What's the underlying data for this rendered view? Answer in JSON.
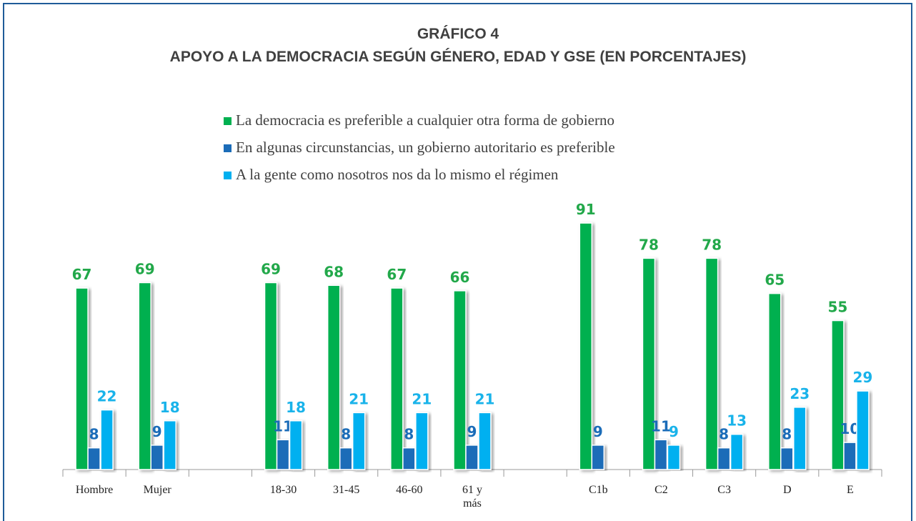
{
  "chart_data": {
    "type": "bar",
    "title": "GRÁFICO 4",
    "subtitle": "APOYO A LA DEMOCRACIA SEGÚN GÉNERO, EDAD Y GSE (EN PORCENTAJES)",
    "categories": [
      "Hombre",
      "Mujer",
      null,
      "18-30",
      "31-45",
      "46-60",
      "61 y más",
      null,
      "C1b",
      "C2",
      "C3",
      "D",
      "E"
    ],
    "series": [
      {
        "name": "La democracia es preferible a cualquier otra forma de gobierno",
        "color": "#00b050",
        "label_color": "#22a84a",
        "values": [
          67,
          69,
          null,
          69,
          68,
          67,
          66,
          null,
          91,
          78,
          78,
          65,
          55
        ]
      },
      {
        "name": "En algunas circunstancias, un gobierno autoritario es preferible",
        "color": "#1b6cb8",
        "label_color": "#1b6cb8",
        "values": [
          8,
          9,
          null,
          11,
          8,
          8,
          9,
          null,
          9,
          11,
          8,
          8,
          10
        ]
      },
      {
        "name": "A la gente como nosotros nos da lo mismo el régimen",
        "color": "#00b0f0",
        "label_color": "#19b3ea",
        "values": [
          22,
          18,
          null,
          18,
          21,
          21,
          21,
          null,
          null,
          9,
          13,
          23,
          29
        ]
      }
    ],
    "ylim": [
      0,
      100
    ],
    "legend": "top"
  }
}
